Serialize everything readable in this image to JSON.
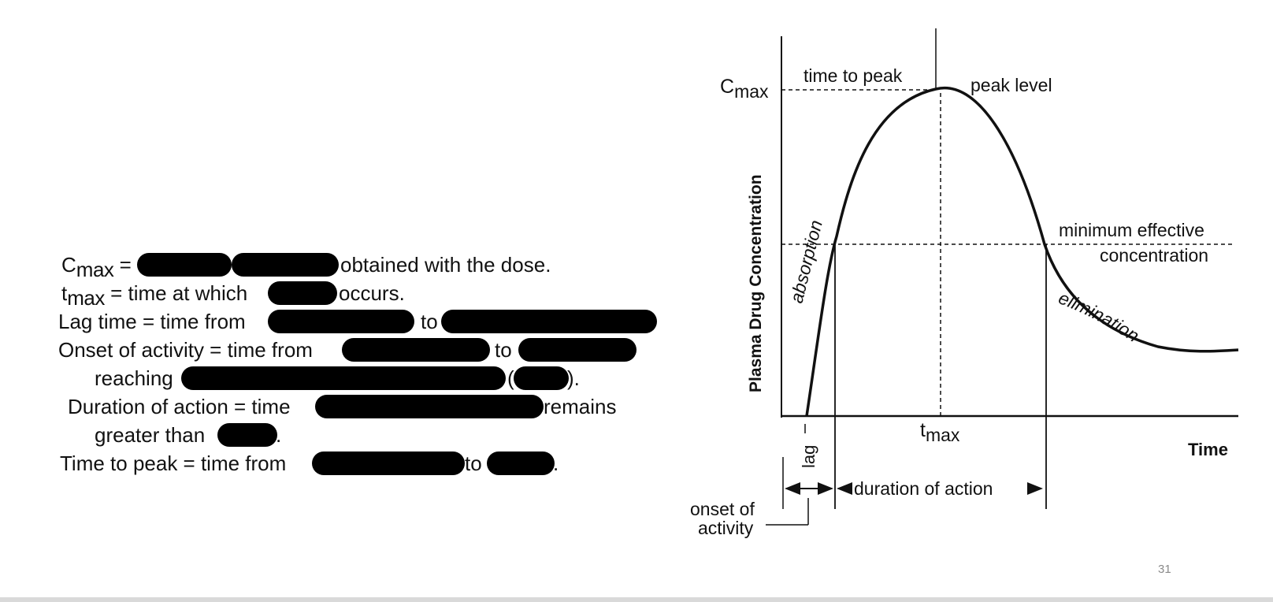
{
  "slide": {
    "page_number": "31"
  },
  "definitions": {
    "cmax": {
      "symbol": "C",
      "sub": "max",
      "eq": " =",
      "after": "obtained with the dose."
    },
    "tmax": {
      "symbol": "t",
      "sub": "max",
      "before": " = time at which",
      "after": "occurs."
    },
    "lag": {
      "before": "Lag time = time from",
      "mid": "to"
    },
    "onset": {
      "before": "Onset of activity = time from",
      "mid": "to",
      "cont": "reaching",
      "paren_open": "(",
      "paren_close": ")."
    },
    "duration": {
      "before": "Duration of action = time",
      "after": "remains",
      "cont": "greater than",
      "cont_end": "."
    },
    "peak": {
      "before": "Time to peak = time from",
      "mid": "to",
      "end": "."
    }
  },
  "diagram": {
    "cmax_symbol": "C",
    "cmax_sub": "max",
    "tmax_symbol": "t",
    "tmax_sub": "max",
    "ylabel": "Plasma Drug Concentration",
    "xlabel": "Time",
    "time_to_peak": "time to peak",
    "peak_level": "peak level",
    "absorption": "absorption",
    "elimination": "elimination",
    "mec_line1": "minimum effective",
    "mec_line2": "concentration",
    "lag": "lag",
    "duration_of_action": "duration of action",
    "onset_line1": "onset of",
    "onset_line2": "activity"
  }
}
